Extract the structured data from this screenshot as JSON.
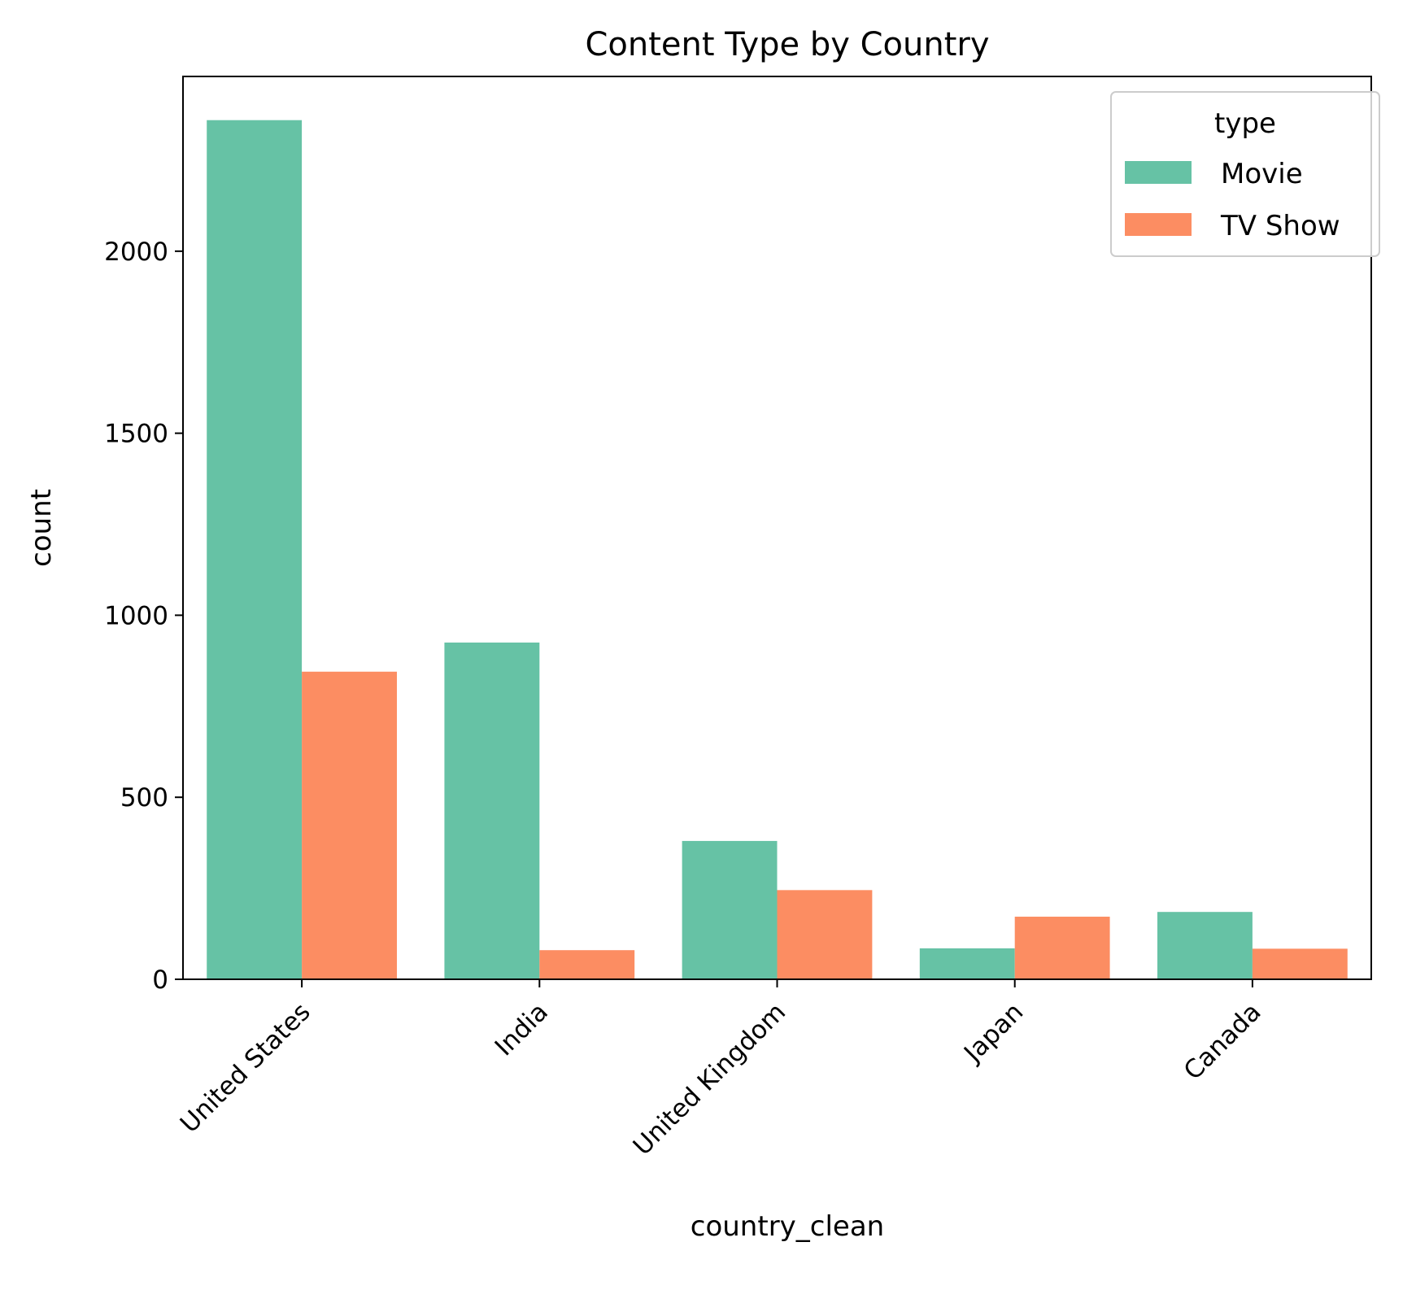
{
  "chart_data": {
    "type": "bar",
    "title": "Content Type by Country",
    "xlabel": "country_clean",
    "ylabel": "count",
    "categories": [
      "United States",
      "India",
      "United Kingdom",
      "Japan",
      "Canada"
    ],
    "series": [
      {
        "name": "Movie",
        "color": "#66c2a5",
        "values": [
          2360,
          925,
          380,
          85,
          185
        ]
      },
      {
        "name": "TV Show",
        "color": "#fc8d62",
        "values": [
          845,
          80,
          245,
          172,
          84
        ]
      }
    ],
    "ylim": [
      0,
      2480
    ],
    "yticks": [
      0,
      500,
      1000,
      1500,
      2000
    ],
    "grid": false,
    "legend": {
      "title": "type",
      "placement": "top-right"
    }
  }
}
